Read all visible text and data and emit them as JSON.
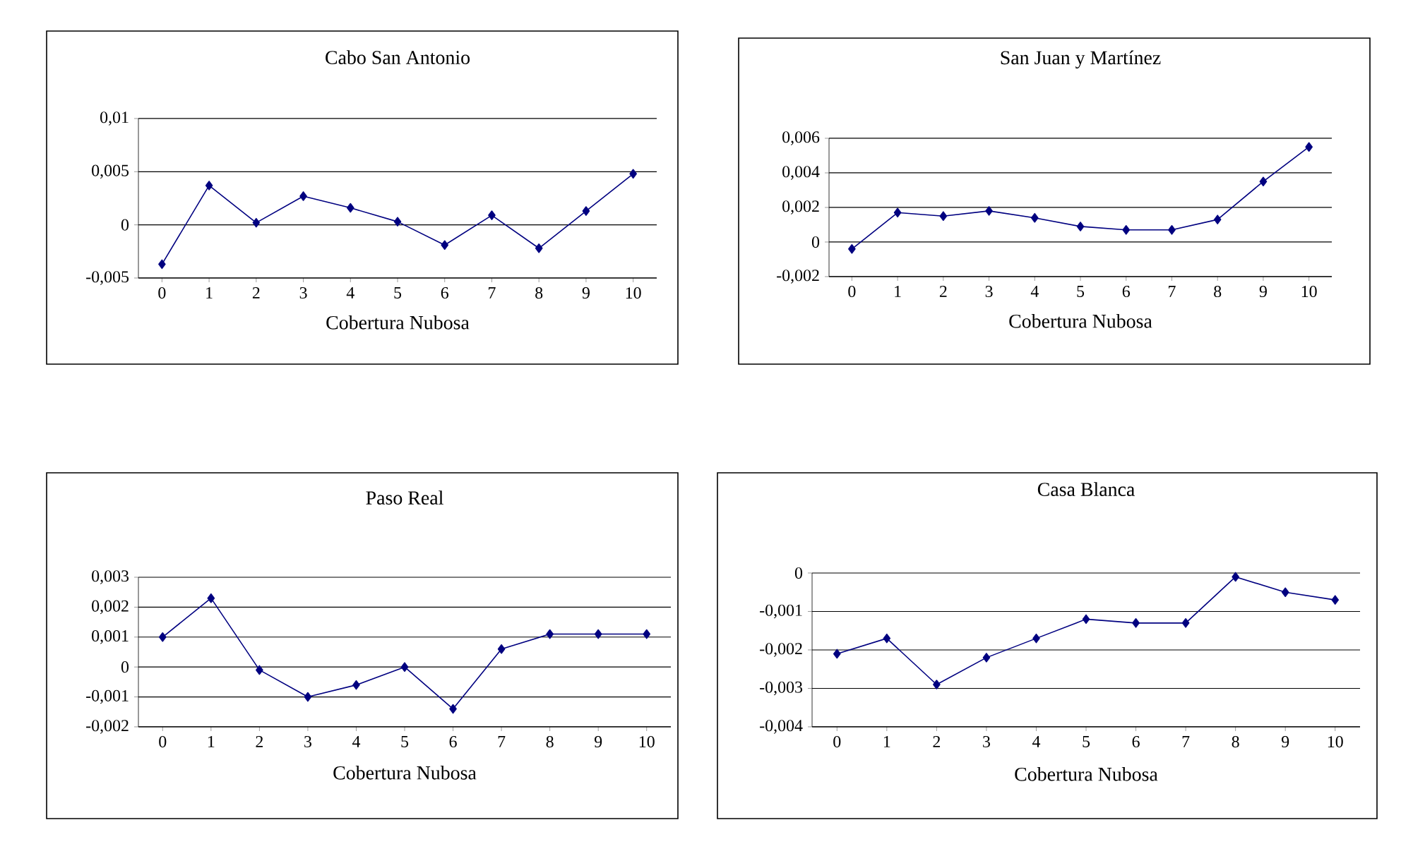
{
  "chart_data": [
    {
      "type": "line",
      "title": "Cabo San Antonio",
      "xlabel": "Cobertura Nubosa",
      "categories": [
        "0",
        "1",
        "2",
        "3",
        "4",
        "5",
        "6",
        "7",
        "8",
        "9",
        "10"
      ],
      "series": [
        {
          "color": "#000080",
          "values": [
            -0.0037,
            0.0037,
            0.0002,
            0.0027,
            0.0016,
            0.0003,
            -0.0019,
            0.0009,
            -0.0022,
            0.0013,
            0.0048
          ]
        }
      ],
      "ylim": [
        -0.005,
        0.01
      ],
      "yticks": [
        {
          "value": -0.005,
          "label": "-0,005"
        },
        0,
        {
          "value": 0.005,
          "label": "0,005"
        },
        {
          "value": 0.01,
          "label": "0,01"
        }
      ],
      "grid": "y",
      "marker": "diamond",
      "line_style": "solid"
    },
    {
      "type": "line",
      "title": "San Juan y Martínez",
      "xlabel": "Cobertura Nubosa",
      "categories": [
        "0",
        "1",
        "2",
        "3",
        "4",
        "5",
        "6",
        "7",
        "8",
        "9",
        "10"
      ],
      "series": [
        {
          "color": "#000080",
          "values": [
            -0.0004,
            0.0017,
            0.0015,
            0.0018,
            0.0014,
            0.0009,
            0.0007,
            0.0007,
            0.0013,
            0.0035,
            0.0055
          ]
        }
      ],
      "ylim": [
        -0.002,
        0.006
      ],
      "yticks": [
        {
          "value": -0.002,
          "label": "-0,002"
        },
        0,
        {
          "value": 0.002,
          "label": "0,002"
        },
        {
          "value": 0.004,
          "label": "0,004"
        },
        {
          "value": 0.006,
          "label": "0,006"
        }
      ],
      "grid": "y",
      "marker": "diamond",
      "line_style": "solid"
    },
    {
      "type": "line",
      "title": "Paso Real",
      "xlabel": "Cobertura Nubosa",
      "categories": [
        "0",
        "1",
        "2",
        "3",
        "4",
        "5",
        "6",
        "7",
        "8",
        "9",
        "10"
      ],
      "series": [
        {
          "color": "#000080",
          "values": [
            0.001,
            0.0023,
            -0.0001,
            -0.001,
            -0.0006,
            0.0,
            -0.0014,
            0.0006,
            0.0011,
            0.0011,
            0.0011
          ]
        }
      ],
      "ylim": [
        -0.002,
        0.003
      ],
      "yticks": [
        {
          "value": -0.002,
          "label": "-0,002"
        },
        {
          "value": -0.001,
          "label": "-0,001"
        },
        0,
        {
          "value": 0.001,
          "label": "0,001"
        },
        {
          "value": 0.002,
          "label": "0,002"
        },
        {
          "value": 0.003,
          "label": "0,003"
        }
      ],
      "grid": "y",
      "marker": "diamond",
      "line_style": "solid"
    },
    {
      "type": "line",
      "title": "Casa Blanca",
      "xlabel": "Cobertura Nubosa",
      "categories": [
        "0",
        "1",
        "2",
        "3",
        "4",
        "5",
        "6",
        "7",
        "8",
        "9",
        "10"
      ],
      "series": [
        {
          "color": "#000080",
          "values": [
            -0.0021,
            -0.0017,
            -0.0029,
            -0.0022,
            -0.0017,
            -0.0012,
            -0.0013,
            -0.0013,
            -0.0001,
            -0.0005,
            -0.0007
          ]
        }
      ],
      "ylim": [
        -0.004,
        0
      ],
      "yticks": [
        {
          "value": -0.004,
          "label": "-0,004"
        },
        {
          "value": -0.003,
          "label": "-0,003"
        },
        {
          "value": -0.002,
          "label": "-0,002"
        },
        {
          "value": -0.001,
          "label": "-0,001"
        },
        0
      ],
      "grid": "y",
      "marker": "diamond",
      "line_style": "solid"
    }
  ]
}
